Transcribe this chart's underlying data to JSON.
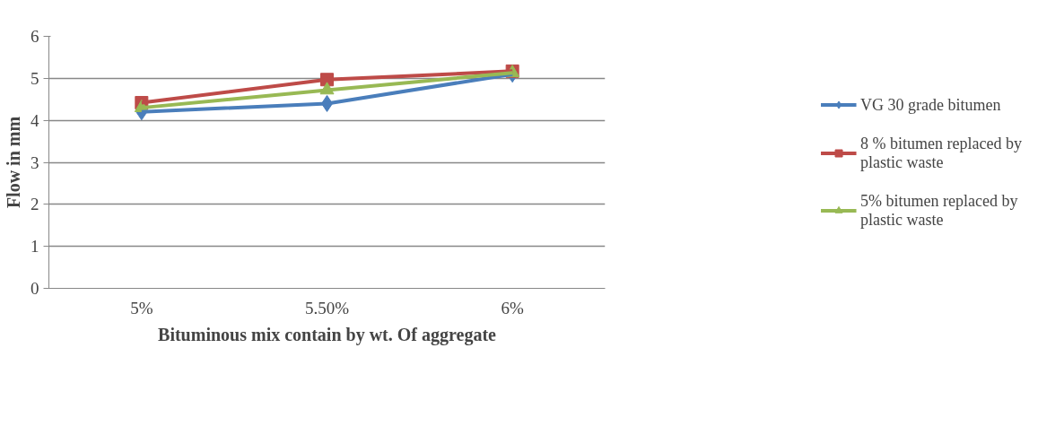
{
  "chart_data": {
    "type": "line",
    "xlabel": "Bituminous mix contain by wt. Of aggregate",
    "ylabel": "Flow in mm",
    "categories": [
      "5%",
      "5.50%",
      "6%"
    ],
    "series": [
      {
        "name": "VG 30 grade bitumen",
        "color": "#4a7ebb",
        "marker": "diamond",
        "values": [
          4.2,
          4.4,
          5.1
        ]
      },
      {
        "name": "8 % bitumen replaced by plastic waste",
        "color": "#be4b48",
        "marker": "square",
        "values": [
          4.42,
          4.97,
          5.17
        ]
      },
      {
        "name": "5% bitumen replaced by plastic waste",
        "color": "#98b954",
        "marker": "triangle",
        "values": [
          4.3,
          4.72,
          5.13
        ]
      }
    ],
    "ylim": [
      0,
      6
    ],
    "yticks": [
      0,
      1,
      2,
      3,
      4,
      5,
      6
    ],
    "grid": "y",
    "legend": "right",
    "line_style": "solid"
  }
}
